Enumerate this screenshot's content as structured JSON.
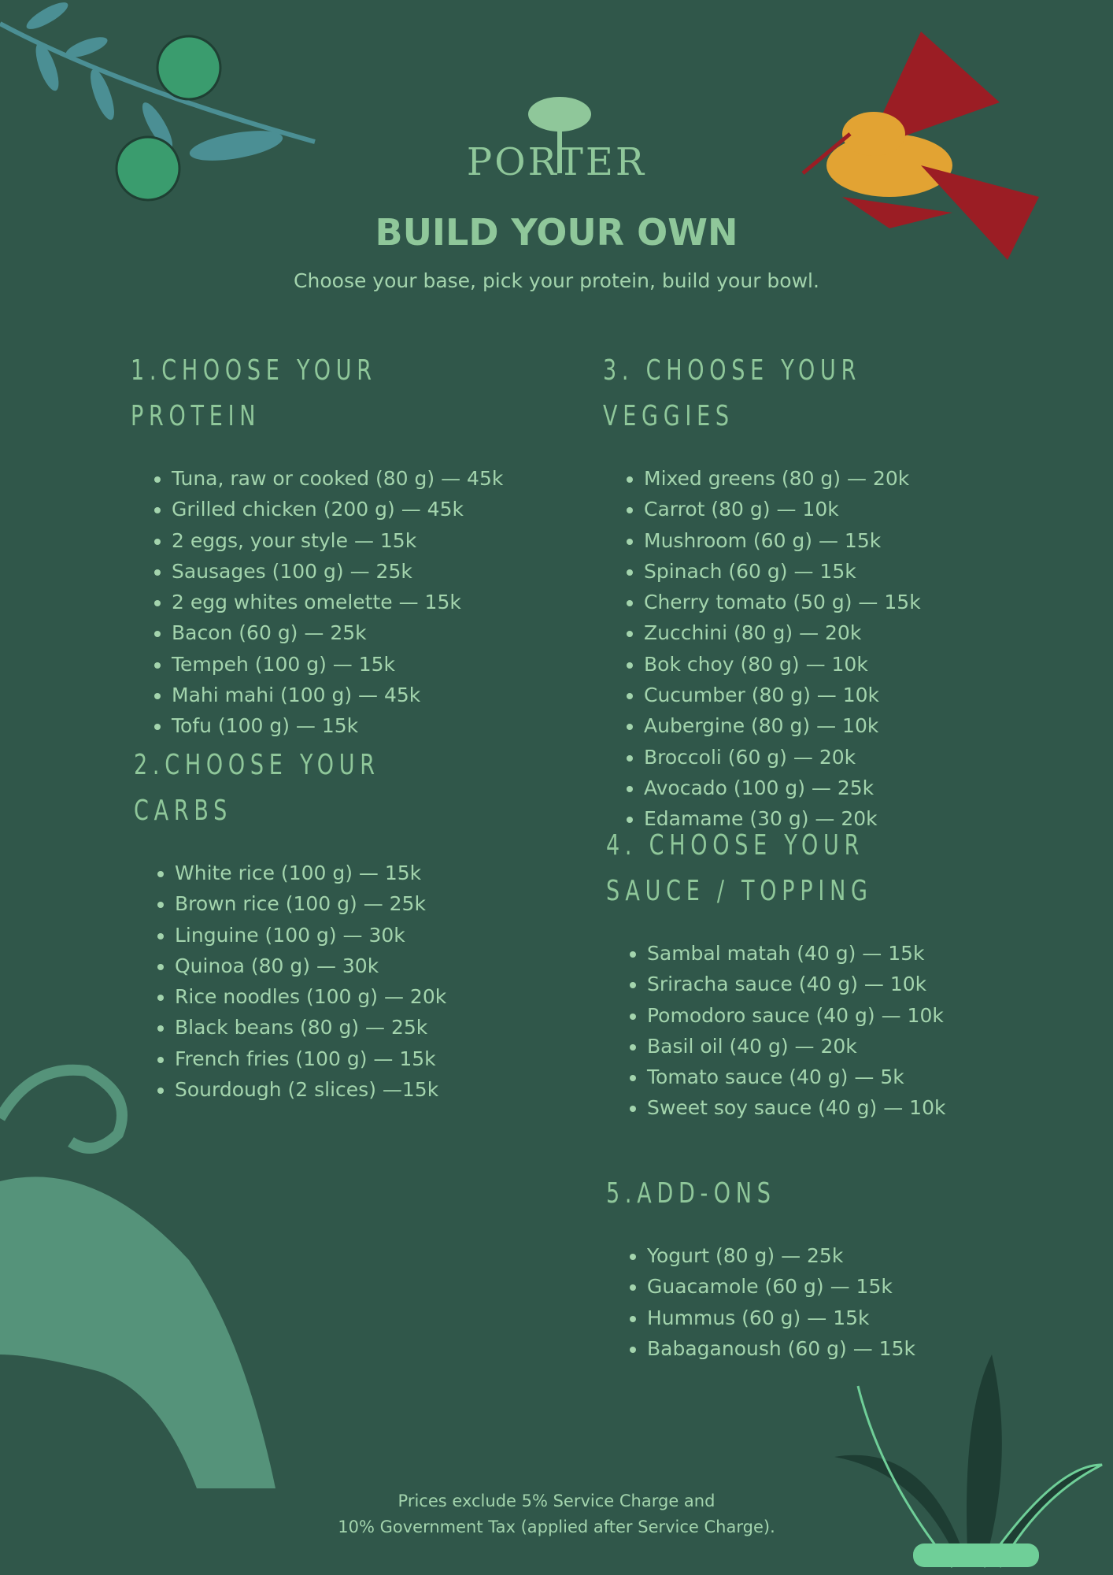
{
  "header": {
    "logo": "PORTER",
    "title": "BUILD YOUR OWN",
    "subtitle": "Choose your base, pick your protein, build your bowl."
  },
  "sections": [
    {
      "heading": "1.CHOOSE YOUR PROTEIN",
      "items": [
        "Tuna, raw or cooked (80 g) — 45k",
        "Grilled chicken (200 g) — 45k",
        "2 eggs, your style — 15k",
        "Sausages (100 g) — 25k",
        "2 egg whites omelette — 15k",
        "Bacon (60 g) — 25k",
        "Tempeh (100 g) — 15k",
        "Mahi mahi (100 g) — 45k",
        "Tofu (100 g) — 15k"
      ]
    },
    {
      "heading": "2.CHOOSE YOUR CARBS",
      "items": [
        "White rice (100 g) — 15k",
        "Brown rice (100 g) — 25k",
        "Linguine (100 g) — 30k",
        "Quinoa (80 g) — 30k",
        "Rice noodles (100 g) — 20k",
        "Black beans (80 g) — 25k",
        "French fries (100 g) — 15k",
        "Sourdough (2 slices) —15k"
      ]
    },
    {
      "heading": "3. CHOOSE YOUR VEGGIES",
      "items": [
        "Mixed greens (80 g) — 20k",
        "Carrot (80 g) — 10k",
        "Mushroom (60 g) — 15k",
        "Spinach (60 g) — 15k",
        "Cherry tomato (50 g) — 15k",
        "Zucchini (80 g) — 20k",
        "Bok choy (80 g) — 10k",
        "Cucumber (80 g) — 10k",
        "Aubergine (80 g) — 10k",
        "Broccoli (60 g) — 20k",
        "Avocado (100 g) — 25k",
        "Edamame (30 g) — 20k"
      ]
    },
    {
      "heading": "4. CHOOSE YOUR SAUCE / TOPPING",
      "items": [
        "Sambal matah (40 g) — 15k",
        "Sriracha sauce (40 g) — 10k",
        "Pomodoro sauce (40 g) — 10k",
        "Basil oil (40 g) — 20k",
        "Tomato sauce (40 g) — 5k",
        "Sweet soy sauce (40 g) — 10k"
      ]
    },
    {
      "heading": "5.ADD-ONS",
      "items": [
        "Yogurt (80 g) — 25k",
        "Guacamole (60 g) — 15k",
        "Hummus (60 g) — 15k",
        "Babaganoush (60 g) — 15k"
      ]
    }
  ],
  "footer": {
    "line1": "Prices exclude 5% Service Charge and",
    "line2": "10% Government Tax (applied after Service Charge)."
  }
}
